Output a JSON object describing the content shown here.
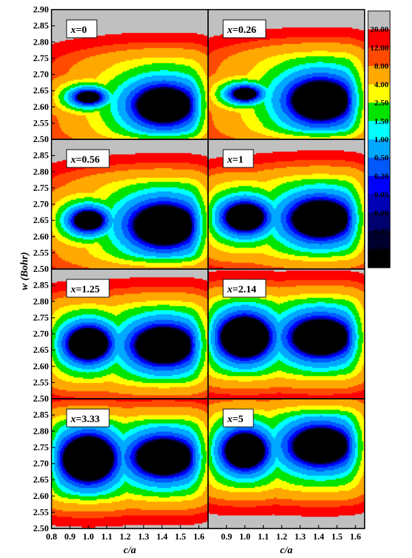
{
  "chart_data": {
    "type": "heatmap",
    "xlabel": "c/a",
    "ylabel": {
      "symbol": "w",
      "unit": "(Bohr)"
    },
    "xlim": [
      0.8,
      1.65
    ],
    "x_ticks": [
      "0.8",
      "0.9",
      "1.0",
      "1.1",
      "1.2",
      "1.3",
      "1.4",
      "1.5",
      "1.6"
    ],
    "panel_rows": [
      {
        "ylim": [
          2.5,
          2.9
        ],
        "y_ticks": [
          "2.50",
          "2.55",
          "2.60",
          "2.65",
          "2.70",
          "2.75",
          "2.80",
          "2.85",
          "2.90"
        ]
      },
      {
        "ylim": [
          2.5,
          2.9
        ],
        "y_ticks": [
          "2.50",
          "2.55",
          "2.60",
          "2.65",
          "2.70",
          "2.75",
          "2.80",
          "2.85"
        ]
      },
      {
        "ylim": [
          2.5,
          2.9
        ],
        "y_ticks": [
          "2.50",
          "2.55",
          "2.60",
          "2.65",
          "2.70",
          "2.75",
          "2.80",
          "2.85"
        ]
      },
      {
        "ylim": [
          2.5,
          2.9
        ],
        "y_ticks": [
          "2.50",
          "2.55",
          "2.60",
          "2.65",
          "2.70",
          "2.75",
          "2.80",
          "2.85"
        ]
      }
    ],
    "colorbar": {
      "levels": [
        "20.00",
        "12.00",
        "8.00",
        "4.00",
        "2.50",
        "1.50",
        "1.00",
        "0.50",
        "0.20",
        "0.05",
        "0.00",
        "-0.05",
        "-0.10"
      ],
      "colors": [
        "#c0c0c0",
        "#ff0000",
        "#ff4a00",
        "#ffa800",
        "#ffff00",
        "#00e400",
        "#00ffff",
        "#00a8ff",
        "#0058ff",
        "#0000ff",
        "#0000b4",
        "#00006e",
        "#00002e",
        "#000000"
      ]
    },
    "panels": [
      {
        "label_var": "x",
        "label_val": "=0",
        "minima": [
          {
            "ca": 1.0,
            "w": 2.63,
            "depth": 4.6,
            "rx": 0.07,
            "ry": 0.02
          },
          {
            "ca": 1.41,
            "w": 2.605,
            "depth": 5.8,
            "rx": 0.15,
            "ry": 0.055
          }
        ]
      },
      {
        "label_var": "x",
        "label_val": "=0.26",
        "minima": [
          {
            "ca": 1.0,
            "w": 2.64,
            "depth": 4.8,
            "rx": 0.07,
            "ry": 0.02
          },
          {
            "ca": 1.41,
            "w": 2.62,
            "depth": 6.0,
            "rx": 0.155,
            "ry": 0.06
          }
        ]
      },
      {
        "label_var": "x",
        "label_val": "=0.56",
        "minima": [
          {
            "ca": 1.0,
            "w": 2.65,
            "depth": 5.5,
            "rx": 0.08,
            "ry": 0.03
          },
          {
            "ca": 1.41,
            "w": 2.635,
            "depth": 6.3,
            "rx": 0.16,
            "ry": 0.06
          }
        ]
      },
      {
        "label_var": "x",
        "label_val": "=1",
        "minima": [
          {
            "ca": 1.0,
            "w": 2.66,
            "depth": 6.2,
            "rx": 0.1,
            "ry": 0.04
          },
          {
            "ca": 1.41,
            "w": 2.655,
            "depth": 6.3,
            "rx": 0.15,
            "ry": 0.055
          }
        ]
      },
      {
        "label_var": "x",
        "label_val": "=1.25",
        "minima": [
          {
            "ca": 1.0,
            "w": 2.67,
            "depth": 6.8,
            "rx": 0.1,
            "ry": 0.045
          },
          {
            "ca": 1.41,
            "w": 2.665,
            "depth": 6.3,
            "rx": 0.15,
            "ry": 0.055
          }
        ]
      },
      {
        "label_var": "x",
        "label_val": "=2.14",
        "minima": [
          {
            "ca": 1.0,
            "w": 2.69,
            "depth": 7.6,
            "rx": 0.115,
            "ry": 0.055
          },
          {
            "ca": 1.41,
            "w": 2.69,
            "depth": 6.1,
            "rx": 0.15,
            "ry": 0.055
          }
        ]
      },
      {
        "label_var": "x",
        "label_val": "=3.33",
        "minima": [
          {
            "ca": 1.0,
            "w": 2.715,
            "depth": 7.8,
            "rx": 0.12,
            "ry": 0.06
          },
          {
            "ca": 1.41,
            "w": 2.72,
            "depth": 6.1,
            "rx": 0.15,
            "ry": 0.055
          }
        ]
      },
      {
        "label_var": "x",
        "label_val": "=5",
        "minima": [
          {
            "ca": 1.0,
            "w": 2.74,
            "depth": 6.8,
            "rx": 0.1,
            "ry": 0.05
          },
          {
            "ca": 1.41,
            "w": 2.755,
            "depth": 6.0,
            "rx": 0.15,
            "ry": 0.055
          }
        ]
      }
    ]
  }
}
